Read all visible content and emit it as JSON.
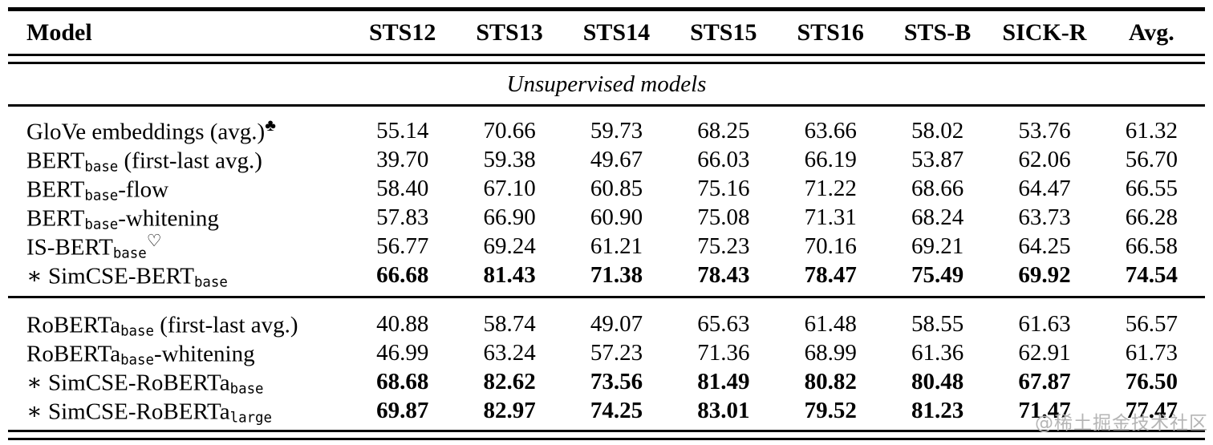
{
  "table": {
    "columns": [
      "Model",
      "STS12",
      "STS13",
      "STS14",
      "STS15",
      "STS16",
      "STS-B",
      "SICK-R",
      "Avg."
    ],
    "section_title": "Unsupervised models",
    "rows": [
      {
        "model": {
          "name": "GloVe embeddings (avg.)",
          "sup": "♣"
        },
        "values": [
          "55.14",
          "70.66",
          "59.73",
          "68.25",
          "63.66",
          "58.02",
          "53.76",
          "61.32"
        ]
      },
      {
        "model": {
          "name": "BERT",
          "sub": "base",
          "suffix": " (first-last avg.)"
        },
        "values": [
          "39.70",
          "59.38",
          "49.67",
          "66.03",
          "66.19",
          "53.87",
          "62.06",
          "56.70"
        ]
      },
      {
        "model": {
          "name": "BERT",
          "sub": "base",
          "suffix": "-flow"
        },
        "values": [
          "58.40",
          "67.10",
          "60.85",
          "75.16",
          "71.22",
          "68.66",
          "64.47",
          "66.55"
        ]
      },
      {
        "model": {
          "name": "BERT",
          "sub": "base",
          "suffix": "-whitening"
        },
        "values": [
          "57.83",
          "66.90",
          "60.90",
          "75.08",
          "71.31",
          "68.24",
          "63.73",
          "66.28"
        ]
      },
      {
        "model": {
          "name": "IS-BERT",
          "sub": "base",
          "sup": "♡"
        },
        "values": [
          "56.77",
          "69.24",
          "61.21",
          "75.23",
          "70.16",
          "69.21",
          "64.25",
          "66.58"
        ]
      },
      {
        "model": {
          "prefix": "∗ ",
          "name": "SimCSE-BERT",
          "sub": "base"
        },
        "values": [
          "66.68",
          "81.43",
          "71.38",
          "78.43",
          "78.47",
          "75.49",
          "69.92",
          "74.54"
        ],
        "bold": true
      },
      {
        "model": {
          "name": "RoBERTa",
          "sub": "base",
          "suffix": " (first-last avg.)"
        },
        "values": [
          "40.88",
          "58.74",
          "49.07",
          "65.63",
          "61.48",
          "58.55",
          "61.63",
          "56.57"
        ]
      },
      {
        "model": {
          "name": "RoBERTa",
          "sub": "base",
          "suffix": "-whitening"
        },
        "values": [
          "46.99",
          "63.24",
          "57.23",
          "71.36",
          "68.99",
          "61.36",
          "62.91",
          "61.73"
        ]
      },
      {
        "model": {
          "prefix": "∗ ",
          "name": "SimCSE-RoBERTa",
          "sub": "base"
        },
        "values": [
          "68.68",
          "82.62",
          "73.56",
          "81.49",
          "80.82",
          "80.48",
          "67.87",
          "76.50"
        ],
        "bold": true
      },
      {
        "model": {
          "prefix": "∗ ",
          "name": "SimCSE-RoBERTa",
          "sub": "large"
        },
        "values": [
          "69.87",
          "82.97",
          "74.25",
          "83.01",
          "79.52",
          "81.23",
          "71.47",
          "77.47"
        ],
        "bold": true
      }
    ]
  },
  "watermark": {
    "text": "@稀土掘金技术社区",
    "color": "#b5b5b5"
  }
}
